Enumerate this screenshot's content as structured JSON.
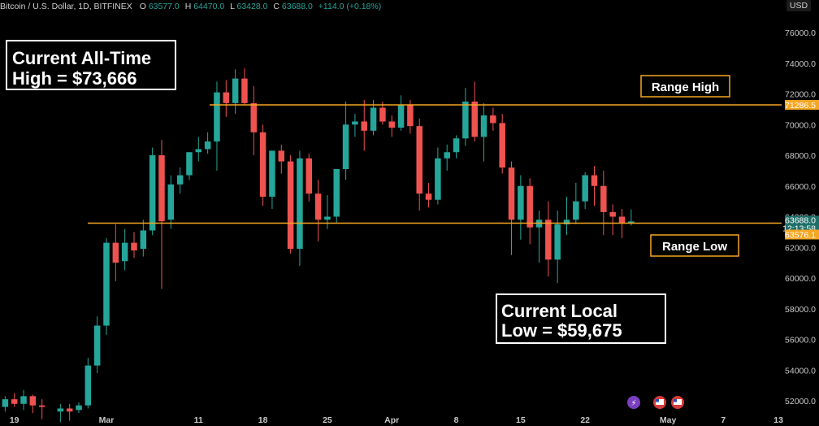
{
  "header": {
    "symbol": "Bitcoin / U.S. Dollar, 1D, BITFINEX",
    "o_label": "O",
    "o_value": "63577.0",
    "h_label": "H",
    "h_value": "64470.0",
    "l_label": "L",
    "l_value": "63428.0",
    "c_label": "C",
    "c_value": "63688.0",
    "change": "+114.0 (+0.18%)",
    "currency": "USD"
  },
  "annotations": {
    "ath_line1": "Current All-Time",
    "ath_line2": "High = $73,666",
    "local_line1": "Current Local",
    "local_line2": "Low = $59,675",
    "range_high": "Range High",
    "range_low": "Range Low"
  },
  "price_tags": {
    "range_high": "71286.5",
    "current": "63688.0",
    "countdown": "12:13:58",
    "range_low": "63576.1"
  },
  "colors": {
    "up": "#26a69a",
    "down": "#ef5350",
    "line": "#f5a623",
    "current_tag": "#1f6f69",
    "annotation_box": "#ffffff"
  },
  "chart_data": {
    "type": "candlestick",
    "y_ticks": [
      "76000.0",
      "74000.0",
      "72000.0",
      "70000.0",
      "68000.0",
      "66000.0",
      "64000.0",
      "62000.0",
      "60000.0",
      "58000.0",
      "56000.0",
      "54000.0",
      "52000.0"
    ],
    "ylim": [
      51500,
      77200
    ],
    "x_labels": [
      {
        "label": "19",
        "day": -10
      },
      {
        "label": "Mar",
        "day": 0
      },
      {
        "label": "11",
        "day": 10
      },
      {
        "label": "18",
        "day": 17
      },
      {
        "label": "25",
        "day": 24
      },
      {
        "label": "Apr",
        "day": 31
      },
      {
        "label": "8",
        "day": 38
      },
      {
        "label": "15",
        "day": 45
      },
      {
        "label": "22",
        "day": 52
      },
      {
        "label": "May",
        "day": 61
      },
      {
        "label": "7",
        "day": 67
      },
      {
        "label": "13",
        "day": 73
      }
    ],
    "range_high": 71286.5,
    "range_low": 63576.1,
    "candles": [
      {
        "day": -11,
        "o": 51600,
        "h": 52300,
        "l": 51300,
        "c": 52100
      },
      {
        "day": -10,
        "o": 52100,
        "h": 52500,
        "l": 51600,
        "c": 51800
      },
      {
        "day": -9,
        "o": 51800,
        "h": 52700,
        "l": 51400,
        "c": 52300
      },
      {
        "day": -8,
        "o": 52300,
        "h": 52400,
        "l": 51200,
        "c": 51700
      },
      {
        "day": -7,
        "o": 51700,
        "h": 52100,
        "l": 50800,
        "c": 51600
      },
      {
        "day": -5,
        "o": 51300,
        "h": 51800,
        "l": 50600,
        "c": 51500
      },
      {
        "day": -4,
        "o": 51500,
        "h": 51800,
        "l": 50700,
        "c": 51300
      },
      {
        "day": -3,
        "o": 51400,
        "h": 51900,
        "l": 51200,
        "c": 51700
      },
      {
        "day": -2,
        "o": 51700,
        "h": 54800,
        "l": 51500,
        "c": 54300
      },
      {
        "day": -1,
        "o": 54300,
        "h": 57500,
        "l": 53800,
        "c": 56900
      },
      {
        "day": 0,
        "o": 56900,
        "h": 62600,
        "l": 56300,
        "c": 62300
      },
      {
        "day": 1,
        "o": 62300,
        "h": 63500,
        "l": 59800,
        "c": 61000
      },
      {
        "day": 2,
        "o": 61100,
        "h": 63200,
        "l": 60500,
        "c": 62300
      },
      {
        "day": 3,
        "o": 62300,
        "h": 63000,
        "l": 61300,
        "c": 61800
      },
      {
        "day": 4,
        "o": 61900,
        "h": 63800,
        "l": 61400,
        "c": 63100
      },
      {
        "day": 5,
        "o": 63100,
        "h": 68500,
        "l": 62800,
        "c": 68000
      },
      {
        "day": 6,
        "o": 68000,
        "h": 69000,
        "l": 59300,
        "c": 63700
      },
      {
        "day": 7,
        "o": 63800,
        "h": 66700,
        "l": 63200,
        "c": 66100
      },
      {
        "day": 8,
        "o": 66100,
        "h": 67200,
        "l": 65500,
        "c": 66700
      },
      {
        "day": 9,
        "o": 66700,
        "h": 68200,
        "l": 66400,
        "c": 68200
      },
      {
        "day": 10,
        "o": 68200,
        "h": 69200,
        "l": 67600,
        "c": 68400
      },
      {
        "day": 11,
        "o": 68400,
        "h": 69500,
        "l": 68100,
        "c": 68900
      },
      {
        "day": 12,
        "o": 68900,
        "h": 72800,
        "l": 67000,
        "c": 72100
      },
      {
        "day": 13,
        "o": 72100,
        "h": 72900,
        "l": 70500,
        "c": 71400
      },
      {
        "day": 14,
        "o": 71400,
        "h": 73600,
        "l": 70700,
        "c": 73000
      },
      {
        "day": 15,
        "o": 73000,
        "h": 73666,
        "l": 71300,
        "c": 71400
      },
      {
        "day": 16,
        "o": 71400,
        "h": 72500,
        "l": 68000,
        "c": 69500
      },
      {
        "day": 17,
        "o": 69500,
        "h": 70000,
        "l": 64700,
        "c": 65300
      },
      {
        "day": 18,
        "o": 65300,
        "h": 68300,
        "l": 64500,
        "c": 68300
      },
      {
        "day": 19,
        "o": 68300,
        "h": 68700,
        "l": 66800,
        "c": 67600
      },
      {
        "day": 20,
        "o": 67600,
        "h": 68000,
        "l": 61600,
        "c": 61900
      },
      {
        "day": 21,
        "o": 61900,
        "h": 68300,
        "l": 60800,
        "c": 67800
      },
      {
        "day": 22,
        "o": 67800,
        "h": 68100,
        "l": 65000,
        "c": 65500
      },
      {
        "day": 23,
        "o": 65500,
        "h": 66400,
        "l": 62400,
        "c": 63800
      },
      {
        "day": 24,
        "o": 63800,
        "h": 65400,
        "l": 63200,
        "c": 64000
      },
      {
        "day": 25,
        "o": 64000,
        "h": 67100,
        "l": 63600,
        "c": 67100
      },
      {
        "day": 26,
        "o": 67100,
        "h": 71500,
        "l": 66400,
        "c": 70000
      },
      {
        "day": 27,
        "o": 70000,
        "h": 70700,
        "l": 69200,
        "c": 70200
      },
      {
        "day": 28,
        "o": 70200,
        "h": 71600,
        "l": 68300,
        "c": 69600
      },
      {
        "day": 29,
        "o": 69600,
        "h": 71600,
        "l": 69300,
        "c": 71100
      },
      {
        "day": 30,
        "o": 71100,
        "h": 71500,
        "l": 70000,
        "c": 70200
      },
      {
        "day": 31,
        "o": 70200,
        "h": 70600,
        "l": 69200,
        "c": 69800
      },
      {
        "day": 32,
        "o": 69800,
        "h": 71900,
        "l": 69600,
        "c": 71300
      },
      {
        "day": 33,
        "o": 71300,
        "h": 71600,
        "l": 69400,
        "c": 69900
      },
      {
        "day": 34,
        "o": 69900,
        "h": 70400,
        "l": 64400,
        "c": 65500
      },
      {
        "day": 35,
        "o": 65500,
        "h": 66200,
        "l": 64600,
        "c": 65100
      },
      {
        "day": 36,
        "o": 65100,
        "h": 68500,
        "l": 64800,
        "c": 67800
      },
      {
        "day": 37,
        "o": 67800,
        "h": 68700,
        "l": 67000,
        "c": 68200
      },
      {
        "day": 38,
        "o": 68200,
        "h": 69300,
        "l": 67800,
        "c": 69100
      },
      {
        "day": 39,
        "o": 69100,
        "h": 72400,
        "l": 68600,
        "c": 71500
      },
      {
        "day": 40,
        "o": 71500,
        "h": 72800,
        "l": 68900,
        "c": 69200
      },
      {
        "day": 41,
        "o": 69200,
        "h": 71400,
        "l": 67600,
        "c": 70600
      },
      {
        "day": 42,
        "o": 70600,
        "h": 71100,
        "l": 69600,
        "c": 70100
      },
      {
        "day": 43,
        "o": 70100,
        "h": 70700,
        "l": 66800,
        "c": 67200
      },
      {
        "day": 44,
        "o": 67200,
        "h": 67600,
        "l": 61500,
        "c": 63800
      },
      {
        "day": 45,
        "o": 63800,
        "h": 66700,
        "l": 62500,
        "c": 66000
      },
      {
        "day": 46,
        "o": 66000,
        "h": 66500,
        "l": 62200,
        "c": 63300
      },
      {
        "day": 47,
        "o": 63300,
        "h": 64400,
        "l": 61000,
        "c": 63800
      },
      {
        "day": 48,
        "o": 63800,
        "h": 65000,
        "l": 60100,
        "c": 61200
      },
      {
        "day": 49,
        "o": 61200,
        "h": 64400,
        "l": 59675,
        "c": 63500
      },
      {
        "day": 50,
        "o": 63500,
        "h": 65300,
        "l": 62800,
        "c": 63800
      },
      {
        "day": 51,
        "o": 63800,
        "h": 66200,
        "l": 63500,
        "c": 65000
      },
      {
        "day": 52,
        "o": 65000,
        "h": 66900,
        "l": 64500,
        "c": 66700
      },
      {
        "day": 53,
        "o": 66700,
        "h": 67300,
        "l": 64700,
        "c": 66000
      },
      {
        "day": 54,
        "o": 66000,
        "h": 67000,
        "l": 62800,
        "c": 64300
      },
      {
        "day": 55,
        "o": 64300,
        "h": 64800,
        "l": 62800,
        "c": 64000
      },
      {
        "day": 56,
        "o": 64000,
        "h": 64500,
        "l": 62600,
        "c": 63600
      },
      {
        "day": 57,
        "o": 63577,
        "h": 64470,
        "l": 63428,
        "c": 63688
      }
    ]
  }
}
